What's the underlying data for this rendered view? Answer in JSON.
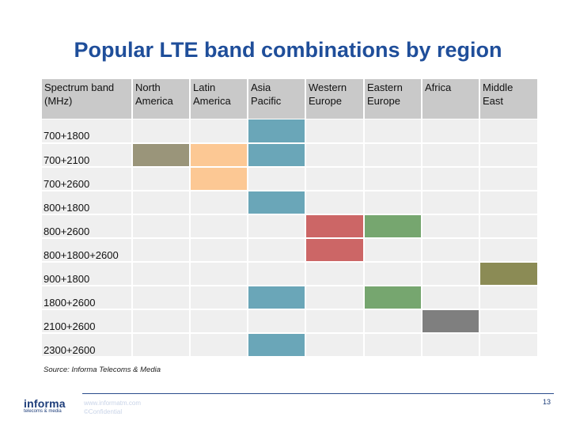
{
  "title": "Popular LTE band combinations by region",
  "table": {
    "headers": [
      "Spectrum band (MHz)",
      "North America",
      "Latin America",
      "Asia Pacific",
      "Western Europe",
      "Eastern Europe",
      "Africa",
      "Middle East"
    ],
    "rows": [
      {
        "band": "700+1800",
        "cells": [
          "",
          "",
          "Asia Pacific",
          "",
          "",
          "",
          ""
        ]
      },
      {
        "band": "700+2100",
        "cells": [
          "North America",
          "Latin America",
          "Asia Pacific",
          "",
          "",
          "",
          ""
        ]
      },
      {
        "band": "700+2600",
        "cells": [
          "",
          "Latin America",
          "",
          "",
          "",
          "",
          ""
        ]
      },
      {
        "band": "800+1800",
        "cells": [
          "",
          "",
          "Asia Pacific",
          "",
          "",
          "",
          ""
        ]
      },
      {
        "band": "800+2600",
        "cells": [
          "",
          "",
          "",
          "Western Europe",
          "Eastern Europe",
          "",
          ""
        ]
      },
      {
        "band": "800+1800+2600",
        "cells": [
          "",
          "",
          "",
          "Western Europe",
          "",
          "",
          ""
        ]
      },
      {
        "band": "900+1800",
        "cells": [
          "",
          "",
          "",
          "",
          "",
          "",
          "Middle East"
        ]
      },
      {
        "band": "1800+2600",
        "cells": [
          "",
          "",
          "Asia Pacific",
          "",
          "Eastern Europe",
          "",
          ""
        ]
      },
      {
        "band": "2100+2600",
        "cells": [
          "",
          "",
          "",
          "",
          "",
          "Africa",
          ""
        ]
      },
      {
        "band": "2300+2600",
        "cells": [
          "",
          "",
          "Asia Pacific",
          "",
          "",
          "",
          ""
        ]
      }
    ],
    "region_colors": {
      "North America": "#9a957a",
      "Latin America": "#fcc894",
      "Asia Pacific": "#6aa6b8",
      "Western Europe": "#cc6666",
      "Eastern Europe": "#76a66f",
      "Africa": "#7f7f7f",
      "Middle East": "#8b8b55"
    }
  },
  "source": "Source: Informa Telecoms & Media",
  "footer": {
    "logo_main": "informa",
    "logo_sub": "telecoms & media",
    "website": "www.informatm.com",
    "confidential": "©Confidential",
    "page": "13"
  }
}
